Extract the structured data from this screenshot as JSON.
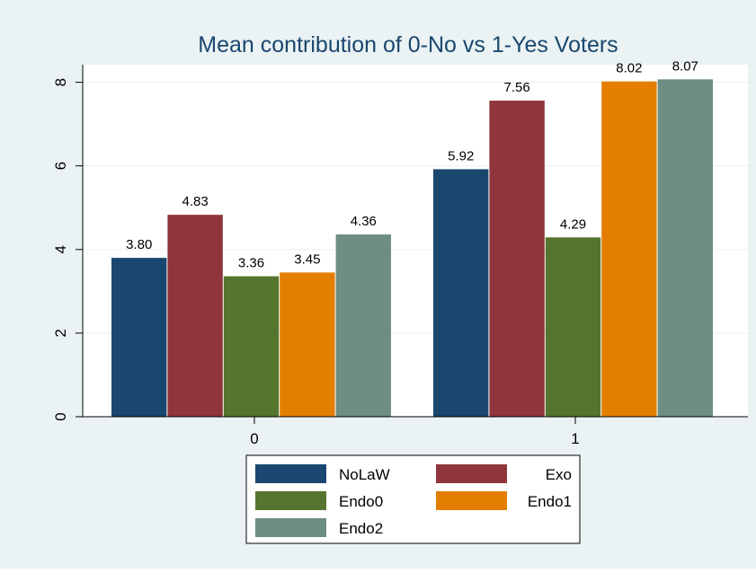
{
  "chart_data": {
    "type": "bar",
    "title": "Mean contribution of 0-No vs 1-Yes Voters",
    "xlabel": "",
    "ylabel": "",
    "categories": [
      "0",
      "1"
    ],
    "ylim": [
      0,
      8.5
    ],
    "yticks": [
      0,
      2,
      4,
      6,
      8
    ],
    "grid": true,
    "legend_position": "bottom",
    "series": [
      {
        "name": "NoLaW",
        "color": "#1a476f",
        "values": [
          3.8,
          5.92
        ],
        "labels": [
          "3.80",
          "5.92"
        ]
      },
      {
        "name": "Exo",
        "color": "#90353b",
        "values": [
          4.83,
          7.56
        ],
        "labels": [
          "4.83",
          "7.56"
        ]
      },
      {
        "name": "Endo0",
        "color": "#55752f",
        "values": [
          3.36,
          4.29
        ],
        "labels": [
          "3.36",
          "4.29"
        ]
      },
      {
        "name": "Endo1",
        "color": "#e37e00",
        "values": [
          3.45,
          8.02
        ],
        "labels": [
          "3.45",
          "8.02"
        ]
      },
      {
        "name": "Endo2",
        "color": "#6e8e84",
        "values": [
          4.36,
          8.07
        ],
        "labels": [
          "4.36",
          "8.07"
        ]
      }
    ]
  },
  "colors": {
    "outer_background": "#eaf2f3",
    "plot_background": "#ffffff",
    "grid": "#eaf2f3",
    "title": "#1a476f",
    "text": "#000000"
  }
}
